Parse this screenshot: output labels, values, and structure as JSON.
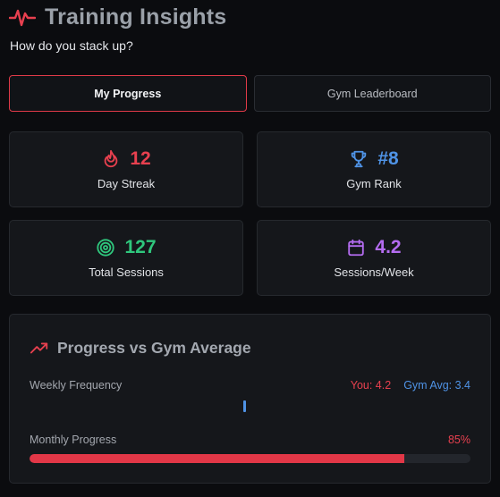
{
  "header": {
    "title": "Training Insights",
    "subtitle": "How do you stack up?",
    "logo_icon": "heartbeat-pulse-icon",
    "accent_color": "#e8404f"
  },
  "tabs": [
    {
      "label": "My Progress",
      "active": true
    },
    {
      "label": "Gym Leaderboard",
      "active": false
    }
  ],
  "stats": [
    {
      "icon": "flame-icon",
      "value": "12",
      "label": "Day Streak",
      "color": "#e8404f"
    },
    {
      "icon": "trophy-icon",
      "value": "#8",
      "label": "Gym Rank",
      "color": "#4f93e6"
    },
    {
      "icon": "target-icon",
      "value": "127",
      "label": "Total Sessions",
      "color": "#2fc77d"
    },
    {
      "icon": "calendar-icon",
      "value": "4.2",
      "label": "Sessions/Week",
      "color": "#b46cf0"
    }
  ],
  "comparison": {
    "title": "Progress vs Gym Average",
    "icon": "trending-up-icon",
    "weekly_frequency": {
      "label": "Weekly Frequency",
      "you": "You: 4.2",
      "gym_avg": "Gym Avg: 3.4"
    },
    "monthly_progress": {
      "label": "Monthly Progress",
      "percent_text": "85%",
      "fraction": 0.85
    }
  }
}
